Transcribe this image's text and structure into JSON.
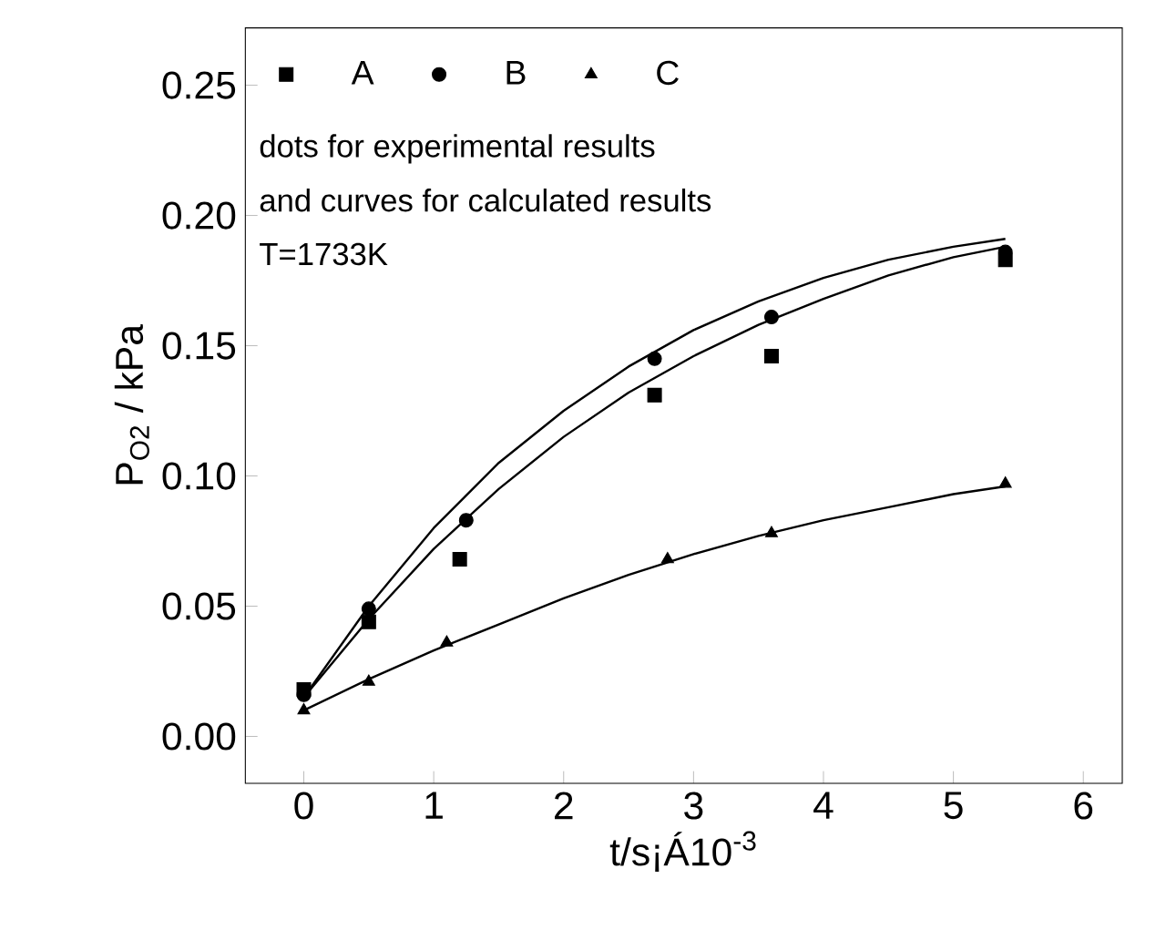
{
  "chart_data": {
    "type": "scatter",
    "xlabel": "t/s¡Á10$^{-3}$",
    "ylabel": "P$_{O2}$ / kPa",
    "xlim": [
      -0.45,
      6.3
    ],
    "ylim": [
      -0.018,
      0.272
    ],
    "xticks": [
      0,
      1,
      2,
      3,
      4,
      5,
      6
    ],
    "yticks": [
      {
        "value": 0,
        "label": "0.00"
      },
      {
        "value": 0.05,
        "label": "0.05"
      },
      {
        "value": 0.1,
        "label": "0.10"
      },
      {
        "value": 0.15,
        "label": "0.15"
      },
      {
        "value": 0.2,
        "label": "0.20"
      },
      {
        "value": 0.25,
        "label": "0.25"
      }
    ],
    "legend": "top left",
    "grid": false,
    "annotations": [
      "dots for experimental  results",
      "and curves for calculated results",
      "T=1733K"
    ],
    "series": [
      {
        "name": "A",
        "color": "#000000",
        "marker": "square",
        "x": [
          0,
          0.5,
          1.2,
          2.7,
          3.6,
          5.4
        ],
        "values": [
          0.018,
          0.044,
          0.068,
          0.131,
          0.146,
          0.183
        ]
      },
      {
        "name": "B",
        "color": "#000000",
        "marker": "circle",
        "x": [
          0,
          0.5,
          1.25,
          2.7,
          3.6,
          5.4
        ],
        "values": [
          0.016,
          0.049,
          0.083,
          0.145,
          0.161,
          0.186
        ]
      },
      {
        "name": "C",
        "color": "#000000",
        "marker": "triangle",
        "x": [
          0,
          0.5,
          1.1,
          2.8,
          3.6,
          5.4
        ],
        "values": [
          0.01,
          0.021,
          0.036,
          0.068,
          0.078,
          0.097
        ]
      },
      {
        "type": "line",
        "color": "#000000",
        "marker": "none",
        "line_style": "solid",
        "x": [
          0,
          0.5,
          1,
          1.5,
          2,
          2.5,
          3,
          3.5,
          4,
          4.5,
          5,
          5.4
        ],
        "values": [
          0.015,
          0.05,
          0.08,
          0.105,
          0.125,
          0.142,
          0.156,
          0.167,
          0.176,
          0.183,
          0.188,
          0.191
        ]
      },
      {
        "type": "line",
        "color": "#000000",
        "marker": "none",
        "line_style": "solid",
        "x": [
          0,
          0.5,
          1,
          1.5,
          2,
          2.5,
          3,
          3.5,
          4,
          4.5,
          5,
          5.4
        ],
        "values": [
          0.015,
          0.045,
          0.072,
          0.095,
          0.115,
          0.132,
          0.146,
          0.158,
          0.168,
          0.177,
          0.184,
          0.188
        ]
      },
      {
        "type": "line",
        "color": "#000000",
        "marker": "none",
        "line_style": "solid",
        "x": [
          0,
          0.5,
          1,
          1.5,
          2,
          2.5,
          3,
          3.5,
          4,
          4.5,
          5,
          5.4
        ],
        "values": [
          0.01,
          0.022,
          0.033,
          0.043,
          0.053,
          0.062,
          0.07,
          0.077,
          0.083,
          0.088,
          0.093,
          0.096
        ]
      }
    ]
  }
}
